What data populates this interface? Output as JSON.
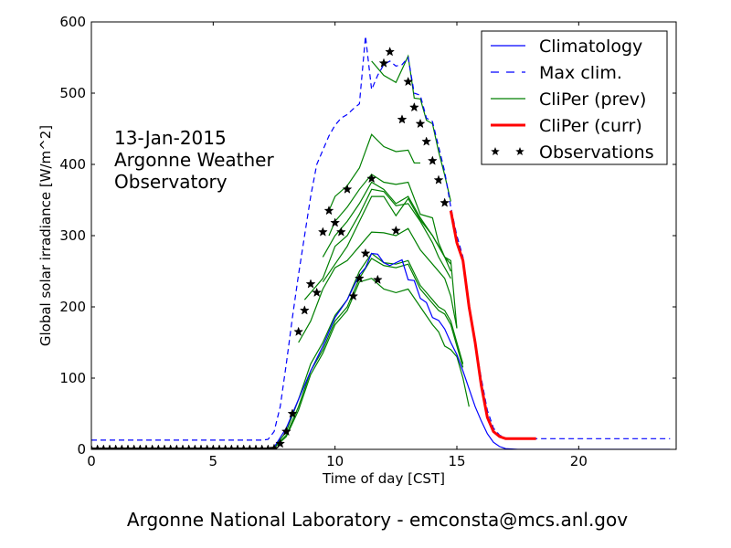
{
  "chart_data": {
    "type": "line",
    "xlabel": "Time of day [CST]",
    "ylabel": "Global solar irradiance [W/m^2]",
    "xlim": [
      0,
      24
    ],
    "ylim": [
      0,
      600
    ],
    "xticks": [
      0,
      5,
      10,
      15,
      20
    ],
    "yticks": [
      0,
      100,
      200,
      300,
      400,
      500,
      600
    ],
    "grid": false,
    "legend_position": "top-right",
    "annotation": [
      "13-Jan-2015",
      "Argonne Weather",
      "Observatory"
    ],
    "footer": "Argonne National Laboratory - emconsta@mcs.anl.gov",
    "series": [
      {
        "name": "Climatology",
        "style": "solid",
        "color": "#0000ff",
        "x": [
          0,
          7.25,
          7.5,
          8,
          8.5,
          9,
          9.5,
          10,
          10.5,
          11,
          11.25,
          11.5,
          11.75,
          12,
          12.25,
          12.5,
          12.75,
          13,
          13.25,
          13.5,
          13.75,
          14,
          14.25,
          14.5,
          14.75,
          15,
          15.25,
          15.5,
          15.75,
          16,
          16.25,
          16.5,
          16.75,
          17,
          17.5,
          18,
          20,
          23.75
        ],
        "y": [
          0,
          0,
          3,
          30,
          70,
          110,
          145,
          185,
          210,
          245,
          255,
          275,
          274,
          262,
          258,
          262,
          266,
          238,
          237,
          212,
          206,
          185,
          181,
          169,
          150,
          133,
          110,
          85,
          60,
          40,
          22,
          10,
          4,
          1,
          0,
          0,
          0,
          0
        ]
      },
      {
        "name": "Max clim.",
        "style": "dashed",
        "color": "#0000ff",
        "x": [
          0,
          7,
          7.25,
          7.5,
          7.75,
          8,
          8.25,
          8.5,
          8.75,
          9,
          9.25,
          9.5,
          9.75,
          10,
          10.25,
          10.5,
          10.75,
          11,
          11.25,
          11.5,
          11.75,
          12,
          12.25,
          12.5,
          12.75,
          13,
          13.25,
          13.5,
          13.75,
          14,
          14.25,
          14.5,
          14.75,
          15,
          15.25,
          15.5,
          15.75,
          16,
          16.25,
          16.5,
          16.75,
          17,
          17.25,
          17.5,
          18,
          20,
          23.75
        ],
        "y": [
          13,
          13,
          14,
          25,
          60,
          120,
          185,
          245,
          300,
          355,
          400,
          420,
          440,
          455,
          465,
          470,
          478,
          485,
          580,
          505,
          525,
          540,
          545,
          538,
          540,
          550,
          500,
          497,
          465,
          460,
          425,
          390,
          340,
          300,
          270,
          200,
          150,
          100,
          55,
          30,
          20,
          16,
          15,
          15,
          15,
          15,
          15
        ]
      },
      {
        "name": "CliPer (prev)",
        "style": "solid",
        "color": "#007f00",
        "group": "ensemble",
        "members": [
          {
            "x": [
              11.5,
              12,
              12.5,
              13,
              13.25,
              13.5,
              13.75,
              14,
              14.25,
              14.5,
              14.75
            ],
            "y": [
              545,
              525,
              515,
              552,
              493,
              492,
              462,
              457,
              418,
              385,
              348
            ]
          },
          {
            "x": [
              9.75,
              10,
              10.5,
              11,
              11.5,
              12,
              12.5,
              13,
              13.25,
              13.5
            ],
            "y": [
              335,
              355,
              370,
              395,
              442,
              425,
              418,
              420,
              402,
              402
            ]
          },
          {
            "x": [
              9.75,
              10,
              10.5,
              11,
              11.5,
              12,
              12.5,
              13,
              13.5,
              14,
              14.25,
              14.5,
              14.75
            ],
            "y": [
              300,
              320,
              340,
              365,
              386,
              375,
              372,
              375,
              330,
              325,
              290,
              270,
              260
            ]
          },
          {
            "x": [
              9.5,
              10,
              10.5,
              11,
              11.5,
              12,
              12.5,
              13,
              13.5,
              14,
              14.25,
              14.5,
              14.75
            ],
            "y": [
              270,
              300,
              320,
              345,
              375,
              365,
              345,
              355,
              325,
              300,
              285,
              270,
              250
            ]
          },
          {
            "x": [
              8.75,
              9,
              9.5,
              10,
              10.5,
              11,
              11.5,
              12,
              12.5,
              13,
              13.5,
              14,
              14.25,
              14.5,
              14.75
            ],
            "y": [
              210,
              220,
              240,
              285,
              300,
              330,
              365,
              362,
              342,
              345,
              320,
              290,
              270,
              255,
              240
            ]
          },
          {
            "x": [
              9.5,
              10,
              10.5,
              11,
              11.5,
              12,
              12.5,
              13,
              13.5,
              14,
              14.5,
              14.75,
              15
            ],
            "y": [
              235,
              260,
              285,
              320,
              355,
              355,
              328,
              352,
              322,
              300,
              270,
              265,
              170
            ]
          },
          {
            "x": [
              8.5,
              9,
              9.5,
              10,
              10.5,
              11,
              11.5,
              12,
              12.5,
              13,
              13.5,
              14,
              14.5,
              14.75,
              15
            ],
            "y": [
              150,
              180,
              225,
              255,
              265,
              285,
              305,
              304,
              300,
              310,
              280,
              260,
              240,
              215,
              170
            ]
          },
          {
            "x": [
              7.5,
              8,
              8.5,
              9,
              9.5,
              10,
              10.5,
              11,
              11.5,
              12,
              12.5,
              13,
              13.5,
              14,
              14.25,
              14.5,
              14.75,
              15,
              15.25
            ],
            "y": [
              2,
              25,
              70,
              120,
              150,
              188,
              210,
              250,
              275,
              262,
              260,
              265,
              230,
              210,
              200,
              195,
              180,
              150,
              120
            ]
          },
          {
            "x": [
              7.5,
              8,
              8.5,
              9,
              9.5,
              10,
              10.5,
              11,
              11.5,
              12,
              12.5,
              13,
              13.5,
              14,
              14.25,
              14.5,
              14.75,
              15,
              15.25
            ],
            "y": [
              2,
              20,
              60,
              110,
              140,
              180,
              200,
              240,
              268,
              258,
              255,
              260,
              225,
              205,
              195,
              190,
              175,
              145,
              115
            ]
          },
          {
            "x": [
              7.5,
              8,
              8.5,
              9,
              9.5,
              10,
              10.5,
              11,
              11.5,
              12,
              12.5,
              13,
              13.5,
              14,
              14.25,
              14.5,
              14.75,
              15,
              15.25,
              15.5
            ],
            "y": [
              2,
              18,
              55,
              105,
              135,
              175,
              195,
              235,
              240,
              225,
              220,
              225,
              200,
              175,
              165,
              145,
              140,
              130,
              100,
              60
            ]
          }
        ]
      },
      {
        "name": "CliPer (curr)",
        "style": "solid",
        "color": "#ff0000",
        "x": [
          14.75,
          15,
          15.25,
          15.5,
          15.75,
          16,
          16.25,
          16.5,
          16.75,
          17,
          17.25,
          17.5,
          18,
          18.25
        ],
        "y": [
          335,
          290,
          265,
          200,
          150,
          90,
          45,
          25,
          18,
          15,
          15,
          15,
          15,
          15
        ]
      },
      {
        "name": "Observations",
        "style": "markers",
        "marker": "star",
        "color": "#000000",
        "x": [
          0,
          0.25,
          0.5,
          0.75,
          1,
          1.25,
          1.5,
          1.75,
          2,
          2.25,
          2.5,
          2.75,
          3,
          3.25,
          3.5,
          3.75,
          4,
          4.25,
          4.5,
          4.75,
          5,
          5.25,
          5.5,
          5.75,
          6,
          6.25,
          6.5,
          6.75,
          7,
          7.25,
          7.5,
          7.75,
          8,
          8.25,
          8.5,
          8.75,
          9,
          9.25,
          9.5,
          9.75,
          10,
          10.25,
          10.5,
          10.75,
          11,
          11.25,
          11.5,
          11.75,
          12,
          12.25,
          12.5,
          12.75,
          13,
          13.25,
          13.5,
          13.75,
          14,
          14.25,
          14.5
        ],
        "y": [
          0,
          0,
          0,
          0,
          0,
          0,
          0,
          0,
          0,
          0,
          0,
          0,
          0,
          0,
          0,
          0,
          0,
          0,
          0,
          0,
          0,
          0,
          0,
          0,
          0,
          0,
          0,
          0,
          0,
          0,
          1,
          8,
          25,
          50,
          165,
          195,
          232,
          220,
          305,
          335,
          318,
          305,
          365,
          215,
          240,
          275,
          380,
          238,
          542,
          558,
          307,
          463,
          516,
          480,
          457,
          432,
          405,
          378,
          346
        ]
      }
    ]
  }
}
